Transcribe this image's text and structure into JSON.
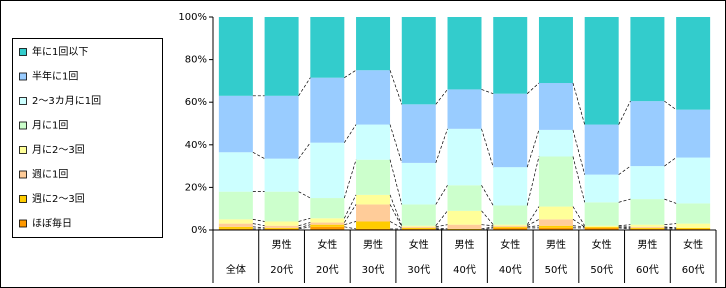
{
  "chart_data": {
    "type": "stacked_bar_100",
    "categories": [
      [
        "全体"
      ],
      [
        "男性",
        "20代"
      ],
      [
        "女性",
        "20代"
      ],
      [
        "男性",
        "30代"
      ],
      [
        "女性",
        "30代"
      ],
      [
        "男性",
        "40代"
      ],
      [
        "女性",
        "40代"
      ],
      [
        "男性",
        "50代"
      ],
      [
        "女性",
        "50代"
      ],
      [
        "男性",
        "60代"
      ],
      [
        "女性",
        "60代"
      ]
    ],
    "series": [
      {
        "name": "年に1回以下",
        "color": "#33cccc",
        "values": [
          37,
          37,
          28.5,
          25,
          41,
          34,
          36,
          31,
          50.5,
          39.5,
          43.5
        ]
      },
      {
        "name": "半年に1回",
        "color": "#99ccff",
        "values": [
          26.5,
          29.5,
          30.5,
          25.5,
          27.5,
          18.5,
          34.5,
          22,
          23.5,
          30.5,
          22.5
        ]
      },
      {
        "name": "2～3カ月に1回",
        "color": "#ccffff",
        "values": [
          18.5,
          15.5,
          26,
          16.5,
          19.5,
          26.5,
          18,
          12.5,
          13,
          15.5,
          21.5
        ]
      },
      {
        "name": "月に1回",
        "color": "#ccffcc",
        "values": [
          13,
          14,
          9.5,
          16.5,
          10,
          12,
          9,
          23.5,
          11,
          12,
          9.5
        ]
      },
      {
        "name": "月に2～3回",
        "color": "#ffff99",
        "values": [
          2,
          2,
          2,
          4.5,
          0.5,
          6.5,
          0.5,
          6,
          0.5,
          1,
          2
        ]
      },
      {
        "name": "週に1回",
        "color": "#ffcc99",
        "values": [
          1.5,
          1,
          1,
          8,
          0.5,
          2,
          0.5,
          3,
          0,
          0.5,
          0
        ]
      },
      {
        "name": "週に2～3回",
        "color": "#ffcc00",
        "values": [
          1,
          0.5,
          1,
          3.5,
          0.5,
          0.5,
          0.5,
          1,
          0.5,
          0.5,
          0.5
        ]
      },
      {
        "name": "ほぼ毎日",
        "color": "#ff9900",
        "values": [
          0.5,
          0.5,
          1.5,
          0.5,
          0.5,
          0,
          1,
          1,
          1,
          0.5,
          0.5
        ]
      }
    ],
    "ylim": [
      0,
      100
    ],
    "yticks": [
      {
        "value": 0,
        "label": "0%"
      },
      {
        "value": 20,
        "label": "20%"
      },
      {
        "value": 40,
        "label": "40%"
      },
      {
        "value": 60,
        "label": "60%"
      },
      {
        "value": 80,
        "label": "80%"
      },
      {
        "value": 100,
        "label": "100%"
      }
    ],
    "series_lines": true
  }
}
